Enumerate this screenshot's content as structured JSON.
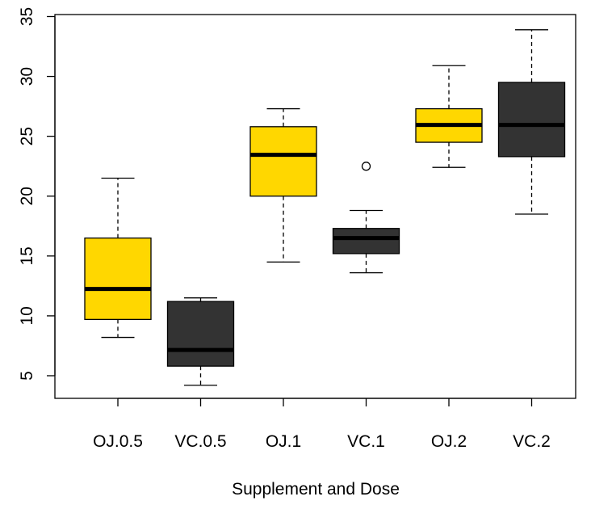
{
  "chart_data": {
    "type": "box",
    "title": "",
    "xlabel": "Supplement and Dose",
    "ylabel": "",
    "ylim": [
      3,
      36
    ],
    "yticks": [
      5,
      10,
      15,
      20,
      25,
      30,
      35
    ],
    "colors": {
      "OJ": "#FFD700",
      "VC": "#333333"
    },
    "categories": [
      "OJ.0.5",
      "VC.0.5",
      "OJ.1",
      "VC.1",
      "OJ.2",
      "VC.2"
    ],
    "boxes": [
      {
        "label": "OJ.0.5",
        "group": "OJ",
        "whisker_low": 8.2,
        "q1": 9.7,
        "median": 12.25,
        "q3": 16.5,
        "whisker_high": 21.5,
        "outliers": []
      },
      {
        "label": "VC.0.5",
        "group": "VC",
        "whisker_low": 4.2,
        "q1": 5.8,
        "median": 7.15,
        "q3": 11.2,
        "whisker_high": 11.5,
        "outliers": []
      },
      {
        "label": "OJ.1",
        "group": "OJ",
        "whisker_low": 14.5,
        "q1": 20.0,
        "median": 23.45,
        "q3": 25.8,
        "whisker_high": 27.3,
        "outliers": []
      },
      {
        "label": "VC.1",
        "group": "VC",
        "whisker_low": 13.6,
        "q1": 15.2,
        "median": 16.5,
        "q3": 17.3,
        "whisker_high": 18.8,
        "outliers": [
          22.5
        ]
      },
      {
        "label": "OJ.2",
        "group": "OJ",
        "whisker_low": 22.4,
        "q1": 24.5,
        "median": 25.95,
        "q3": 27.3,
        "whisker_high": 30.9,
        "outliers": []
      },
      {
        "label": "VC.2",
        "group": "VC",
        "whisker_low": 18.5,
        "q1": 23.3,
        "median": 25.95,
        "q3": 29.5,
        "whisker_high": 33.9,
        "outliers": []
      }
    ]
  }
}
